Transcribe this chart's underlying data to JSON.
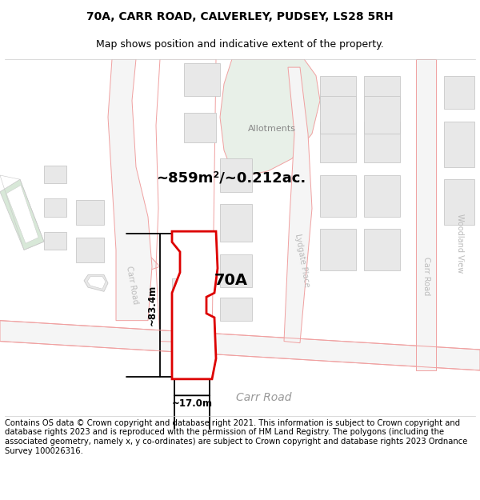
{
  "title_line1": "70A, CARR ROAD, CALVERLEY, PUDSEY, LS28 5RH",
  "title_line2": "Map shows position and indicative extent of the property.",
  "area_text": "~859m²/~0.212ac.",
  "label_70A": "70A",
  "height_label": "~83.4m",
  "width_label": "~17.0m",
  "road_label": "Carr Road",
  "carr_road_small": "Carr Road",
  "lydgate_label": "Lydgate Place",
  "woodland_label": "Carr Road",
  "allotments_label": "Allotments",
  "footer_text": "Contains OS data © Crown copyright and database right 2021. This information is subject to Crown copyright and database rights 2023 and is reproduced with the permission of HM Land Registry. The polygons (including the associated geometry, namely x, y co-ordinates) are subject to Crown copyright and database rights 2023 Ordnance Survey 100026316.",
  "bg_color": "#ffffff",
  "map_line_color": "#f0a0a0",
  "map_line_color2": "#c8c8c8",
  "highlight_color": "#dd0000",
  "allotment_fill": "#e8f0e8",
  "railway_fill": "#d8e8d8",
  "title_fontsize": 10,
  "subtitle_fontsize": 9,
  "footer_fontsize": 7.2,
  "road_color": "#aaaaaa",
  "building_fill": "#e8e8e8"
}
